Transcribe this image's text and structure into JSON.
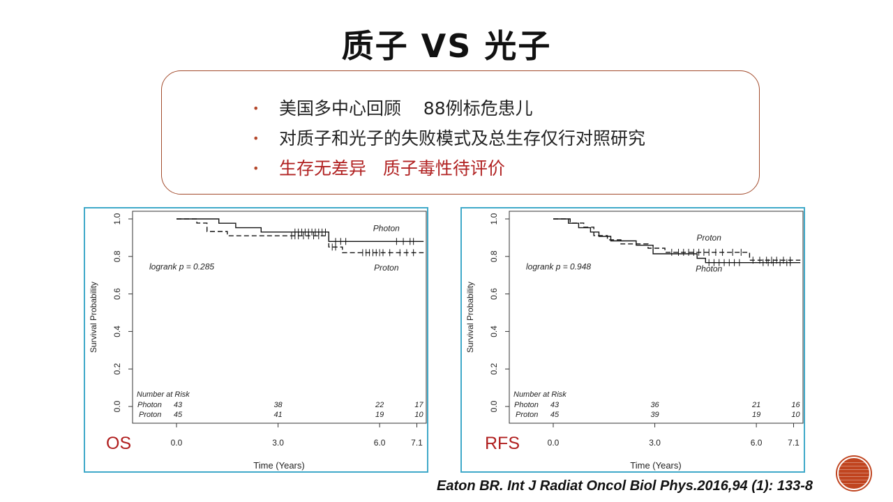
{
  "title": "质子  VS  光子",
  "bullets": [
    {
      "text": "美国多中心回顾    88例标危患儿",
      "highlight": false
    },
    {
      "text": "对质子和光子的失败模式及总生存仅行对照研究",
      "highlight": false
    },
    {
      "text": "生存无差异   质子毒性待评价",
      "highlight": true
    }
  ],
  "citation": "Eaton BR. Int J Radiat Oncol Biol Phys.2016,94 (1): 133-8",
  "colors": {
    "accent": "#3fa9c9",
    "red_text": "#b12222",
    "box_border": "#a24a2b",
    "deco": "#c0441f"
  },
  "chart_data": [
    {
      "type": "line",
      "panel_label": "OS",
      "xlabel": "Time (Years)",
      "ylabel": "Survival Probability",
      "x_ticks": [
        "0.0",
        "3.0",
        "6.0",
        "7.1"
      ],
      "x_tick_values": [
        0,
        3,
        6,
        7.1
      ],
      "y_ticks": [
        "0.0",
        "0.2",
        "0.4",
        "0.6",
        "0.8",
        "1.0"
      ],
      "xlim": [
        0,
        7.1
      ],
      "ylim": [
        0,
        1
      ],
      "annotation": "logrank p = 0.285",
      "series": [
        {
          "name": "Photon",
          "style": "solid",
          "x": [
            0,
            1.25,
            1.25,
            1.75,
            1.75,
            2.5,
            2.5,
            4.5,
            4.5,
            7.3
          ],
          "y": [
            1.0,
            1.0,
            0.977,
            0.977,
            0.953,
            0.953,
            0.93,
            0.93,
            0.88,
            0.88
          ],
          "censors_x": [
            3.5,
            3.6,
            3.7,
            3.8,
            3.9,
            4.0,
            4.1,
            4.2,
            4.3,
            4.4,
            4.7,
            4.85,
            5.0,
            6.5,
            6.7,
            6.9,
            7.0
          ]
        },
        {
          "name": "Proton",
          "style": "dashed",
          "x": [
            0,
            0.6,
            0.6,
            0.9,
            0.9,
            1.5,
            1.5,
            4.5,
            4.5,
            4.9,
            4.9,
            7.3
          ],
          "y": [
            1.0,
            1.0,
            0.978,
            0.978,
            0.933,
            0.933,
            0.91,
            0.91,
            0.85,
            0.85,
            0.82,
            0.82
          ],
          "censors_x": [
            3.4,
            3.5,
            3.6,
            3.75,
            3.9,
            4.05,
            4.2,
            4.6,
            4.7,
            5.5,
            5.6,
            5.7,
            5.8,
            5.9,
            6.0,
            6.1,
            6.3,
            6.6,
            6.8,
            7.0
          ]
        }
      ],
      "series_labels": [
        {
          "text": "Photon",
          "x": 6.2,
          "y": 0.935
        },
        {
          "text": "Proton",
          "x": 6.2,
          "y": 0.725
        }
      ],
      "risk_table": {
        "title": "Number at Risk",
        "rows": [
          {
            "label": "Photon",
            "values": [
              "43",
              "38",
              "22",
              "17"
            ]
          },
          {
            "label": "Proton",
            "values": [
              "45",
              "41",
              "19",
              "10"
            ]
          }
        ]
      }
    },
    {
      "type": "line",
      "panel_label": "RFS",
      "xlabel": "Time (Years)",
      "ylabel": "Survival Probability",
      "x_ticks": [
        "0.0",
        "3.0",
        "6.0",
        "7.1"
      ],
      "x_tick_values": [
        0,
        3,
        6,
        7.1
      ],
      "y_ticks": [
        "0.0",
        "0.2",
        "0.4",
        "0.6",
        "0.8",
        "1.0"
      ],
      "xlim": [
        0,
        7.1
      ],
      "ylim": [
        0,
        1
      ],
      "annotation": "logrank p = 0.948",
      "series": [
        {
          "name": "Photon",
          "style": "solid",
          "x": [
            0,
            0.45,
            0.45,
            0.75,
            0.75,
            1.1,
            1.1,
            1.35,
            1.35,
            1.7,
            1.7,
            2.45,
            2.45,
            2.95,
            2.95,
            4.25,
            4.25,
            4.5,
            4.5,
            7.3
          ],
          "y": [
            1.0,
            1.0,
            0.977,
            0.977,
            0.953,
            0.953,
            0.93,
            0.93,
            0.907,
            0.907,
            0.883,
            0.883,
            0.86,
            0.86,
            0.814,
            0.814,
            0.79,
            0.79,
            0.767,
            0.767
          ],
          "censors_x": [
            4.6,
            4.75,
            4.9,
            5.05,
            5.2,
            5.35,
            5.5,
            6.2,
            6.35,
            6.5,
            6.7,
            6.9,
            7.0
          ]
        },
        {
          "name": "Proton",
          "style": "dashed",
          "x": [
            0,
            0.5,
            0.5,
            0.9,
            0.9,
            1.2,
            1.2,
            1.6,
            1.6,
            2.0,
            2.0,
            2.8,
            2.8,
            3.3,
            3.3,
            5.8,
            5.8,
            7.3
          ],
          "y": [
            1.0,
            1.0,
            0.978,
            0.978,
            0.956,
            0.956,
            0.911,
            0.911,
            0.889,
            0.889,
            0.867,
            0.867,
            0.844,
            0.844,
            0.822,
            0.822,
            0.78,
            0.78
          ],
          "censors_x": [
            3.5,
            3.7,
            3.85,
            4.0,
            4.15,
            4.3,
            4.45,
            4.6,
            4.8,
            5.0,
            5.3,
            5.55,
            5.9,
            6.1,
            6.3,
            6.45,
            6.6,
            6.8,
            7.0
          ]
        }
      ],
      "series_labels": [
        {
          "text": "Proton",
          "x": 4.6,
          "y": 0.885
        },
        {
          "text": "Photon",
          "x": 4.6,
          "y": 0.72
        }
      ],
      "risk_table": {
        "title": "Number at Risk",
        "rows": [
          {
            "label": "Photon",
            "values": [
              "43",
              "36",
              "21",
              "16"
            ]
          },
          {
            "label": "Proton",
            "values": [
              "45",
              "39",
              "19",
              "10"
            ]
          }
        ]
      }
    }
  ]
}
